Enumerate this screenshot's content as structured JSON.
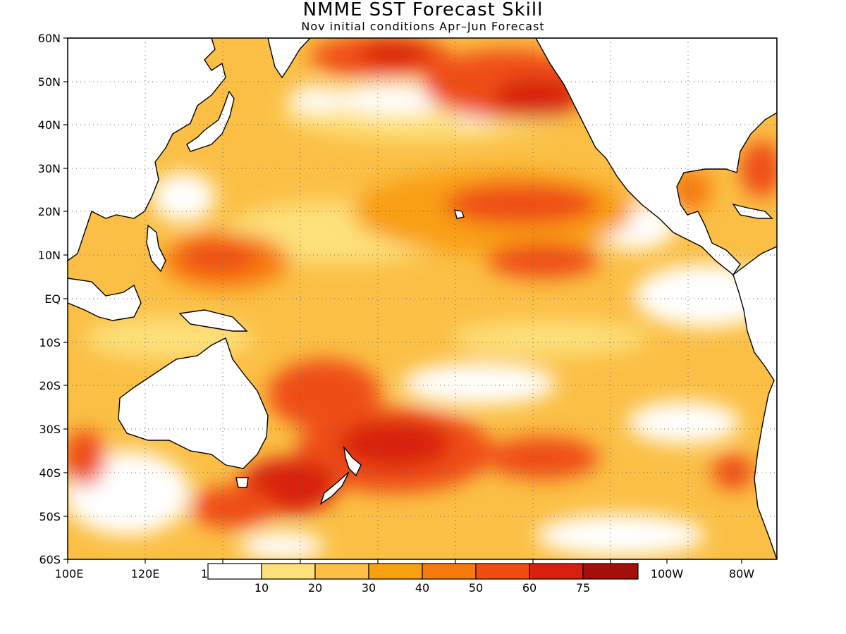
{
  "title": "NMME SST Forecast Skill",
  "subtitle": "Nov initial conditions  Apr–Jun Forecast",
  "lat_labels": [
    "60N",
    "50N",
    "40N",
    "30N",
    "20N",
    "10N",
    "EQ",
    "10S",
    "20S",
    "30S",
    "40S",
    "50S",
    "60S"
  ],
  "lon_labels": [
    "100E",
    "120E",
    "1",
    "100W",
    "80W"
  ],
  "colorbar": {
    "labels": [
      "10",
      "20",
      "30",
      "40",
      "50",
      "60",
      "75"
    ],
    "colors": [
      "#ffffff",
      "#fde07a",
      "#fbbf45",
      "#f99f12",
      "#f77a0a",
      "#ef4d12",
      "#d8200e",
      "#a50f0a"
    ]
  },
  "land_color": "#ffffff",
  "coast_color": "#000000"
}
